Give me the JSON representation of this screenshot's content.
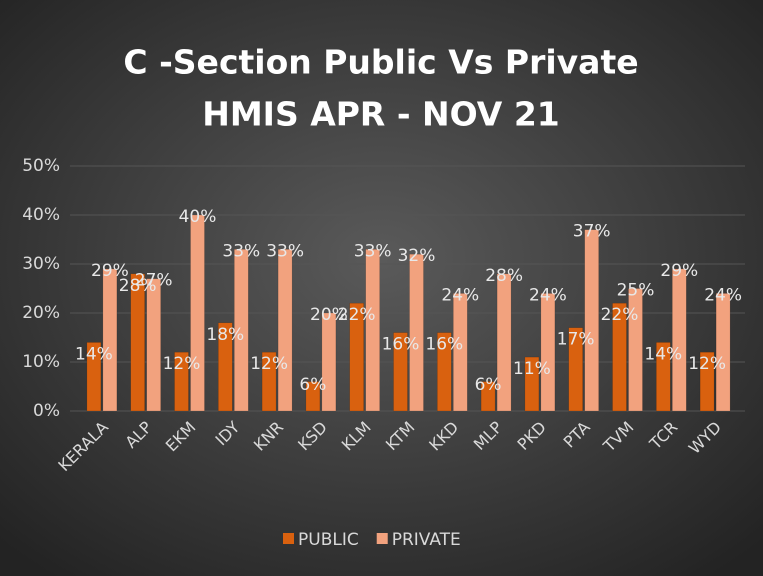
{
  "chart_data": {
    "type": "bar",
    "title": [
      "C -Section Public Vs Private",
      "HMIS APR - NOV 21"
    ],
    "categories": [
      "KERALA",
      "ALP",
      "EKM",
      "IDY",
      "KNR",
      "KSD",
      "KLM",
      "KTM",
      "KKD",
      "MLP",
      "PKD",
      "PTA",
      "TVM",
      "TCR",
      "WYD"
    ],
    "series": [
      {
        "name": "PUBLIC",
        "color": "#d9610f",
        "values": [
          14,
          28,
          12,
          18,
          12,
          6,
          22,
          16,
          16,
          6,
          11,
          17,
          22,
          14,
          12
        ],
        "value_labels": [
          "14%",
          "28%",
          "12%",
          "18%",
          "12%",
          "6%",
          "22%",
          "16%",
          "16%",
          "6%",
          "11%",
          "17%",
          "22%",
          "14%",
          "12%"
        ]
      },
      {
        "name": "PRIVATE",
        "color": "#f2a27e",
        "values": [
          29,
          27,
          40,
          33,
          33,
          20,
          33,
          32,
          24,
          28,
          24,
          37,
          25,
          29,
          24
        ],
        "value_labels": [
          "29%",
          "27%",
          "40%",
          "33%",
          "33%",
          "20%",
          "33%",
          "32%",
          "24%",
          "28%",
          "24%",
          "37%",
          "25%",
          "29%",
          "24%"
        ]
      }
    ],
    "ylim": [
      0,
      50
    ],
    "yticks": [
      {
        "value": 0,
        "label": "0%"
      },
      {
        "value": 10,
        "label": "10%"
      },
      {
        "value": 20,
        "label": "20%"
      },
      {
        "value": 30,
        "label": "30%"
      },
      {
        "value": 40,
        "label": "40%"
      },
      {
        "value": 50,
        "label": "50%"
      }
    ],
    "grid": true,
    "legend": "bottom"
  }
}
